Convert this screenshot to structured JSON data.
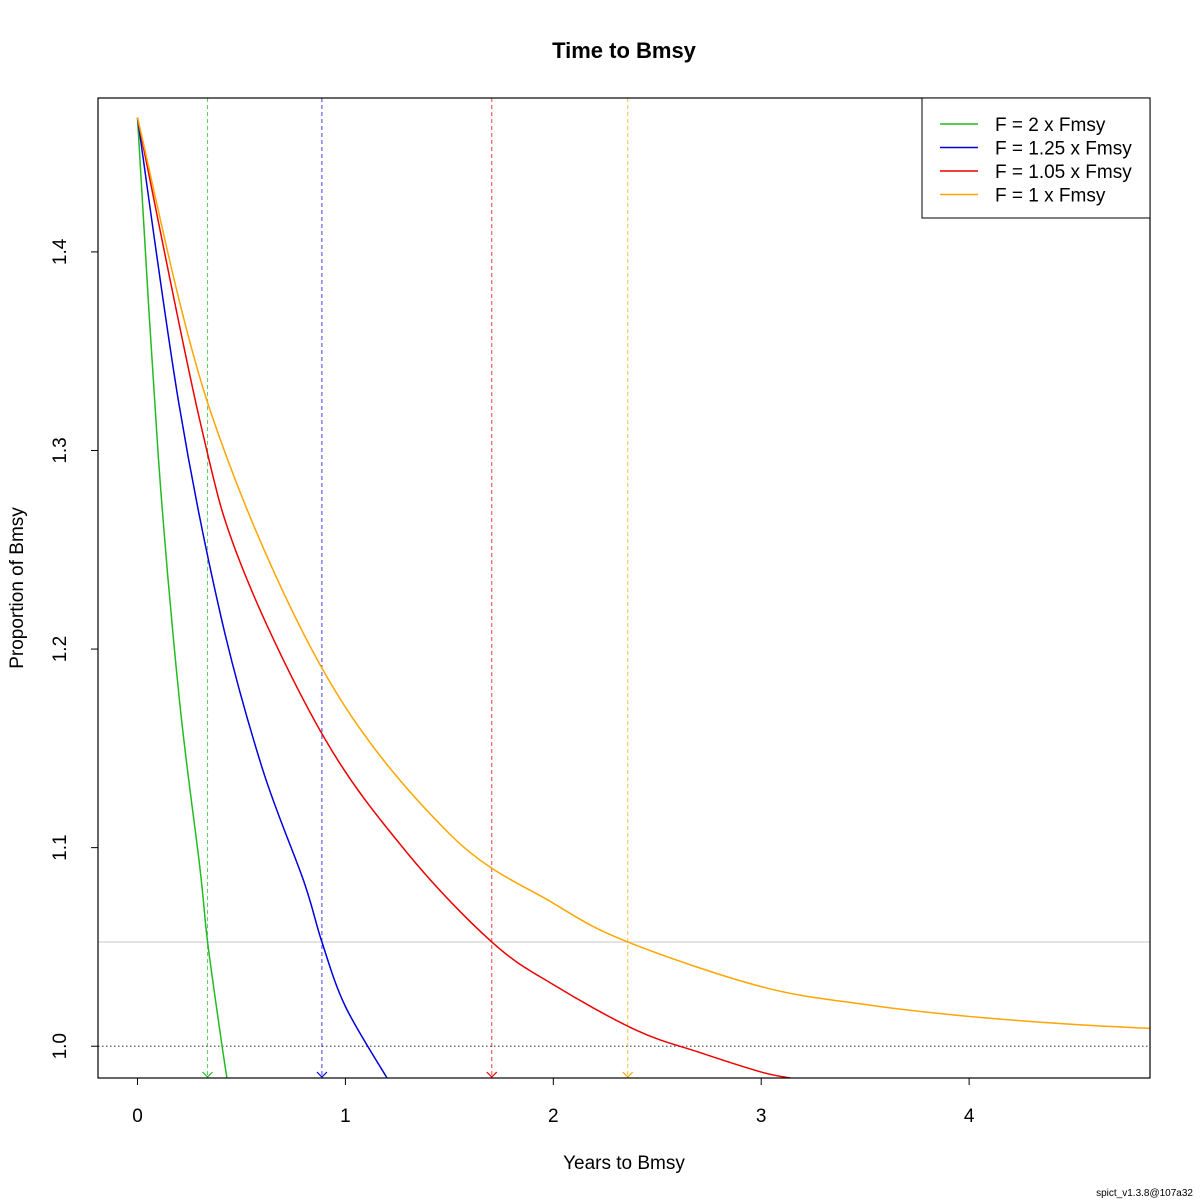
{
  "chart_data": {
    "type": "line",
    "title": "Time to Bmsy",
    "xlabel": "Years to Bmsy",
    "ylabel": "Proportion of Bmsy",
    "xlim": [
      -0.19,
      4.87
    ],
    "ylim": [
      0.984,
      1.4775
    ],
    "x_ticks": [
      0,
      1,
      2,
      3,
      4
    ],
    "x_tick_labels": [
      "0",
      "1",
      "2",
      "3",
      "4"
    ],
    "y_ticks": [
      1.0,
      1.1,
      1.2,
      1.3,
      1.4
    ],
    "y_tick_labels": [
      "1.0",
      "1.1",
      "1.2",
      "1.3",
      "1.4"
    ],
    "grid": false,
    "legend_position": "top-right",
    "start_value": 1.4675,
    "reference_lines": [
      {
        "axis": "y",
        "value": 1.0,
        "style": "dotted",
        "color": "#555555"
      },
      {
        "axis": "y",
        "value": 1.0525,
        "style": "solid",
        "color": "#e3e3e3"
      }
    ],
    "series": [
      {
        "name": "F = 2 x Fmsy",
        "color": "#22bb22",
        "x": [
          0,
          0.1,
          0.2,
          0.3,
          0.337,
          0.4,
          0.43
        ],
        "y": [
          1.4675,
          1.297,
          1.176,
          1.09,
          1.0525,
          1.005,
          0.984
        ],
        "time_to_bmsy": 0.337
      },
      {
        "name": "F = 1.25 x Fmsy",
        "color": "#0000dd",
        "x": [
          0,
          0.2,
          0.4,
          0.6,
          0.8,
          0.887,
          1.0,
          1.2
        ],
        "y": [
          1.4675,
          1.323,
          1.217,
          1.14,
          1.083,
          1.0525,
          1.02,
          0.984
        ],
        "time_to_bmsy": 0.887
      },
      {
        "name": "F = 1.05 x Fmsy",
        "color": "#ee0000",
        "x": [
          0,
          0.3,
          0.5,
          0.9,
          1.3,
          1.704,
          2.0,
          2.4,
          2.7,
          3.0,
          3.14
        ],
        "y": [
          1.4675,
          1.315,
          1.242,
          1.155,
          1.097,
          1.0525,
          1.031,
          1.008,
          0.997,
          0.987,
          0.984
        ],
        "time_to_bmsy": 1.704
      },
      {
        "name": "F = 1 x Fmsy",
        "color": "#ffa500",
        "x": [
          0,
          0.35,
          0.9,
          1.5,
          2.0,
          2.358,
          3.0,
          3.5,
          4.0,
          4.5,
          4.87
        ],
        "y": [
          1.4675,
          1.32,
          1.188,
          1.107,
          1.072,
          1.0525,
          1.03,
          1.021,
          1.015,
          1.011,
          1.009
        ],
        "time_to_bmsy": 2.358
      }
    ]
  },
  "footer": "spict_v1.3.8@107a32"
}
